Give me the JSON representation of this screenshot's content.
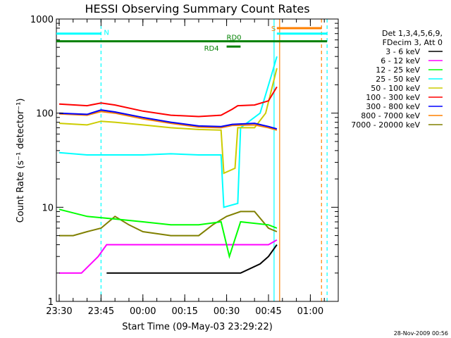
{
  "chart_data": {
    "type": "line",
    "title": "HESSI Observing Summary Count Rates",
    "xlabel": "Start Time (09-May-03 23:29:22)",
    "ylabel": "Count Rate (s⁻¹ detector⁻¹)",
    "yscale": "log",
    "ylim": [
      1,
      1000
    ],
    "xlim": [
      "23:29",
      "01:10"
    ],
    "x_ticks": [
      "23:30",
      "23:45",
      "00:00",
      "00:15",
      "00:30",
      "00:45",
      "01:00"
    ],
    "y_ticks": [
      "1",
      "10",
      "100",
      "1000"
    ],
    "grid": false,
    "legend_position": "right",
    "legend_header": [
      "Det 1,3,4,5,6,9,",
      "FDecim 3, Att 0"
    ],
    "series": [
      {
        "name": "3 - 6 keV",
        "color": "#000000",
        "x": [
          "23:47",
          "23:55",
          "00:05",
          "00:15",
          "00:25",
          "00:35",
          "00:42",
          "00:45",
          "00:48"
        ],
        "values": [
          2,
          2,
          2,
          2,
          2,
          2,
          2.5,
          3,
          4
        ]
      },
      {
        "name": "6 - 12 keV",
        "color": "#ff00ff",
        "x": [
          "23:30",
          "23:38",
          "23:44",
          "23:47",
          "23:55",
          "00:05",
          "00:15",
          "00:25",
          "00:35",
          "00:45",
          "00:48"
        ],
        "values": [
          2,
          2,
          3,
          4,
          4,
          4,
          4,
          4,
          4,
          4,
          4.5
        ]
      },
      {
        "name": "12 - 25 keV",
        "color": "#00ff00",
        "x": [
          "23:30",
          "23:40",
          "23:50",
          "00:00",
          "00:10",
          "00:20",
          "00:28",
          "00:31",
          "00:35",
          "00:45",
          "00:48"
        ],
        "values": [
          9.5,
          8,
          7.5,
          7,
          6.5,
          6.5,
          7,
          3,
          7,
          6.5,
          6
        ]
      },
      {
        "name": "25 - 50 keV",
        "color": "#00ffff",
        "x": [
          "23:30",
          "23:40",
          "23:50",
          "00:00",
          "00:10",
          "00:20",
          "00:28",
          "00:29",
          "00:34",
          "00:35",
          "00:42",
          "00:46",
          "00:48"
        ],
        "values": [
          38,
          36,
          36,
          36,
          37,
          36,
          36,
          10,
          11,
          70,
          100,
          250,
          400
        ]
      },
      {
        "name": "50 - 100 keV",
        "color": "#cccc00",
        "x": [
          "23:30",
          "23:40",
          "23:45",
          "23:50",
          "00:00",
          "00:10",
          "00:20",
          "00:28",
          "00:29",
          "00:33",
          "00:34",
          "00:40",
          "00:44",
          "00:48"
        ],
        "values": [
          78,
          75,
          82,
          80,
          75,
          70,
          67,
          66,
          23,
          26,
          70,
          70,
          100,
          300
        ]
      },
      {
        "name": "100 - 300 keV",
        "color": "#ff0000",
        "x": [
          "23:30",
          "23:40",
          "23:45",
          "23:50",
          "00:00",
          "00:10",
          "00:20",
          "00:28",
          "00:32",
          "00:34",
          "00:40",
          "00:45",
          "00:48"
        ],
        "values": [
          125,
          120,
          128,
          122,
          105,
          95,
          92,
          95,
          110,
          120,
          122,
          135,
          190
        ]
      },
      {
        "name": "300 - 800 keV",
        "color": "#0000ff",
        "x": [
          "23:30",
          "23:40",
          "23:45",
          "23:50",
          "00:00",
          "00:10",
          "00:20",
          "00:28",
          "00:32",
          "00:40",
          "00:45",
          "00:48"
        ],
        "values": [
          100,
          97,
          108,
          103,
          90,
          80,
          73,
          72,
          76,
          78,
          72,
          68
        ]
      },
      {
        "name": "800 - 7000 keV",
        "color": "#ff8000",
        "x": [
          "23:30",
          "23:40",
          "23:45",
          "23:50",
          "00:00",
          "00:10",
          "00:20",
          "00:28",
          "00:32",
          "00:40",
          "00:45",
          "00:48"
        ],
        "values": [
          98,
          95,
          104,
          100,
          87,
          78,
          71,
          70,
          74,
          75,
          70,
          66
        ]
      },
      {
        "name": "7000 - 20000 keV",
        "color": "#808000",
        "x": [
          "23:30",
          "23:35",
          "23:40",
          "23:45",
          "23:50",
          "23:55",
          "00:00",
          "00:10",
          "00:20",
          "00:25",
          "00:30",
          "00:35",
          "00:40",
          "00:45",
          "00:48"
        ],
        "values": [
          5,
          5,
          5.5,
          6,
          8,
          6.5,
          5.5,
          5,
          5,
          6.5,
          8,
          9,
          9,
          6,
          5.5
        ]
      }
    ],
    "annotations": [
      {
        "label": "N",
        "type": "flag",
        "color": "#00ffff",
        "x_start": "23:29",
        "x_end": "23:45",
        "y": 700
      },
      {
        "label": "S",
        "type": "flag",
        "color": "#ff8000",
        "x_start": "00:48",
        "x_end": "01:04",
        "y": 800
      },
      {
        "label": "",
        "type": "flag",
        "color": "#00ffff",
        "x_start": "00:48",
        "x_end": "01:06",
        "y": 700
      },
      {
        "label": "",
        "type": "flag",
        "color": "#008000",
        "x_start": "23:29",
        "x_end": "01:06",
        "y": 580
      },
      {
        "label": "RD0",
        "type": "flag",
        "color": "#008000",
        "x_start": "00:31",
        "x_end": "00:33",
        "y": 580
      },
      {
        "label": "RD4",
        "type": "flag",
        "color": "#008000",
        "x_start": "00:30",
        "x_end": "00:35",
        "y": 510
      }
    ],
    "vertical_lines": [
      {
        "x": "23:45",
        "color": "#00ffff",
        "style": "dashed"
      },
      {
        "x": "00:47",
        "color": "#00ffff",
        "style": "solid"
      },
      {
        "x": "00:49",
        "color": "#ff8000",
        "style": "solid"
      },
      {
        "x": "01:04",
        "color": "#ff8000",
        "style": "dashed"
      },
      {
        "x": "01:06",
        "color": "#00ffff",
        "style": "dashed"
      }
    ]
  },
  "footer_timestamp": "28-Nov-2009 00:56"
}
